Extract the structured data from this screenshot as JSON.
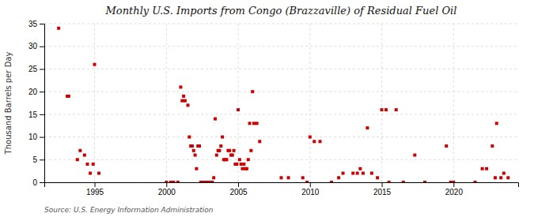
{
  "chart_data": {
    "type": "scatter",
    "title": "Monthly U.S. Imports from Congo (Brazzaville) of Residual Fuel Oil",
    "y_label": "Thousand Barrels per Day",
    "source": "Source: U.S. Energy Information Administration",
    "color": "#cc0000",
    "marker": "square",
    "grid": true,
    "xlim": [
      1991.5,
      2024.5
    ],
    "ylim": [
      0,
      35
    ],
    "xticks": [
      1995,
      2000,
      2005,
      2010,
      2015,
      2020
    ],
    "yticks": [
      0,
      5,
      10,
      15,
      20,
      25,
      30,
      35
    ],
    "x": [
      1992.5,
      1993.1,
      1993.2,
      1993.8,
      1994.0,
      1994.3,
      1994.5,
      1994.7,
      1994.9,
      1995.0,
      1995.3,
      2000.0,
      2000.3,
      2000.5,
      2000.8,
      2001.0,
      2001.1,
      2001.2,
      2001.3,
      2001.5,
      2001.6,
      2001.7,
      2001.8,
      2001.9,
      2002.0,
      2002.1,
      2002.2,
      2002.3,
      2002.4,
      2002.5,
      2002.6,
      2002.7,
      2002.8,
      2002.9,
      2003.0,
      2003.1,
      2003.2,
      2003.3,
      2003.4,
      2003.5,
      2003.6,
      2003.7,
      2003.8,
      2003.9,
      2004.0,
      2004.1,
      2004.2,
      2004.3,
      2004.4,
      2004.5,
      2004.6,
      2004.7,
      2004.8,
      2004.9,
      2005.0,
      2005.1,
      2005.2,
      2005.3,
      2005.4,
      2005.5,
      2005.6,
      2005.7,
      2005.8,
      2005.9,
      2006.0,
      2006.1,
      2006.3,
      2006.5,
      2008.0,
      2008.5,
      2009.5,
      2009.8,
      2010.0,
      2010.3,
      2010.7,
      2011.5,
      2012.0,
      2012.3,
      2013.0,
      2013.3,
      2013.5,
      2013.7,
      2014.0,
      2014.3,
      2014.7,
      2015.0,
      2015.3,
      2015.5,
      2016.0,
      2016.5,
      2017.3,
      2018.0,
      2019.5,
      2019.8,
      2020.0,
      2021.5,
      2022.0,
      2022.3,
      2022.7,
      2022.9,
      2023.0,
      2023.3,
      2023.5,
      2023.8
    ],
    "values": [
      34,
      19,
      19,
      5,
      7,
      6,
      4,
      2,
      4,
      26,
      2,
      0,
      0,
      0,
      0,
      21,
      18,
      19,
      18,
      17,
      10,
      8,
      8,
      7,
      6,
      3,
      8,
      8,
      0,
      0,
      0,
      0,
      0,
      0,
      0,
      0,
      0,
      1,
      14,
      6,
      7,
      7,
      8,
      10,
      5,
      5,
      5,
      7,
      7,
      6,
      6,
      7,
      4,
      4,
      16,
      5,
      4,
      3,
      4,
      3,
      3,
      5,
      13,
      7,
      20,
      13,
      13,
      9,
      1,
      1,
      1,
      0,
      10,
      9,
      9,
      0,
      1,
      2,
      2,
      2,
      3,
      2,
      12,
      2,
      1,
      16,
      16,
      0,
      16,
      0,
      6,
      0,
      8,
      0,
      0,
      0,
      3,
      3,
      8,
      1,
      13,
      1,
      2,
      1
    ]
  }
}
